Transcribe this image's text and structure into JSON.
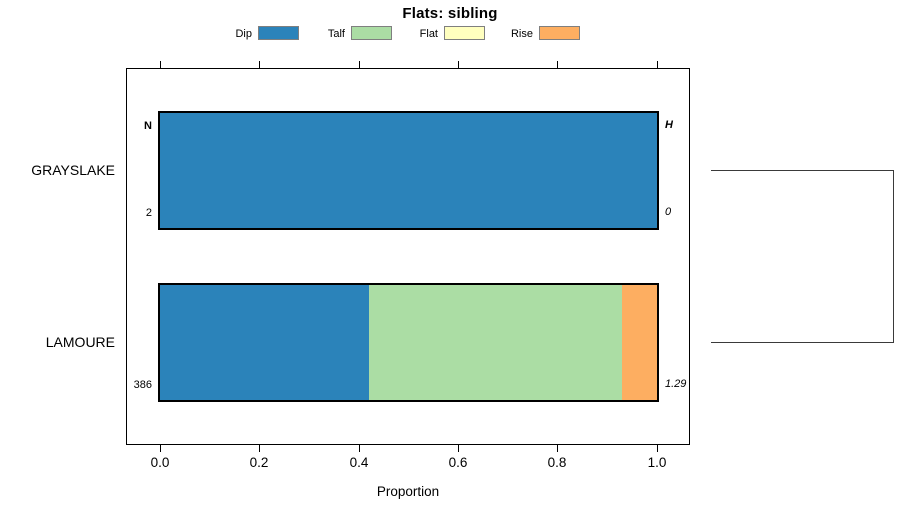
{
  "title": "Flats: sibling",
  "legend": {
    "position": "top",
    "items": [
      {
        "label": "Dip",
        "color": "#2B83BA"
      },
      {
        "label": "Talf",
        "color": "#ABDDA4"
      },
      {
        "label": "Flat",
        "color": "#FFFFBF"
      },
      {
        "label": "Rise",
        "color": "#FDAE61"
      }
    ]
  },
  "chart_data": {
    "type": "bar",
    "orientation": "horizontal-stacked",
    "title": "Flats: sibling",
    "xlabel": "Proportion",
    "xlim": [
      0,
      1
    ],
    "xtick_labels": [
      "0.0",
      "0.2",
      "0.4",
      "0.6",
      "0.8",
      "1.0"
    ],
    "xtick_values": [
      0.0,
      0.2,
      0.4,
      0.6,
      0.8,
      1.0
    ],
    "categories": [
      "GRAYSLAKE",
      "LAMOURE"
    ],
    "series": [
      {
        "name": "Dip",
        "color": "#2B83BA",
        "values": [
          1.0,
          0.42
        ]
      },
      {
        "name": "Talf",
        "color": "#ABDDA4",
        "values": [
          0.0,
          0.51
        ]
      },
      {
        "name": "Flat",
        "color": "#FFFFBF",
        "values": [
          0.0,
          0.0
        ]
      },
      {
        "name": "Rise",
        "color": "#FDAE61",
        "values": [
          0.0,
          0.07
        ]
      }
    ],
    "row_annotations": {
      "left_header": "N",
      "right_header": "H",
      "rows": [
        {
          "category": "GRAYSLAKE",
          "n": "2",
          "h": "0"
        },
        {
          "category": "LAMOURE",
          "n": "386",
          "h": "1.29"
        }
      ]
    },
    "cluster_bracket": {
      "joins": [
        "GRAYSLAKE",
        "LAMOURE"
      ]
    },
    "grid": false,
    "legend_position": "top",
    "bar_border_color": "#000000",
    "background": "#ffffff"
  }
}
